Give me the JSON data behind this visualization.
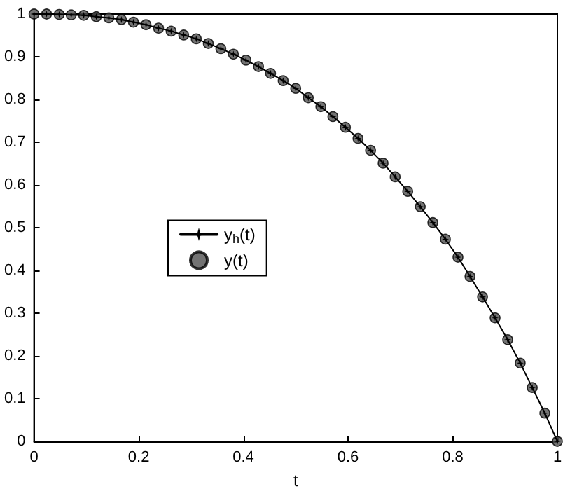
{
  "chart_data": {
    "type": "line",
    "xlabel": "t",
    "x": [
      0,
      0.024,
      0.048,
      0.071,
      0.095,
      0.119,
      0.143,
      0.167,
      0.19,
      0.214,
      0.238,
      0.262,
      0.286,
      0.31,
      0.333,
      0.357,
      0.381,
      0.405,
      0.429,
      0.452,
      0.476,
      0.5,
      0.524,
      0.548,
      0.571,
      0.595,
      0.619,
      0.643,
      0.667,
      0.69,
      0.714,
      0.738,
      0.762,
      0.786,
      0.81,
      0.833,
      0.857,
      0.881,
      0.905,
      0.929,
      0.952,
      0.976,
      1
    ],
    "series": [
      {
        "name": "y$_{h}$(t)",
        "color": "#000000",
        "marker": "star",
        "values": [
          1.0,
          1.0,
          0.999,
          0.998,
          0.997,
          0.994,
          0.991,
          0.987,
          0.981,
          0.975,
          0.967,
          0.96,
          0.951,
          0.942,
          0.931,
          0.919,
          0.906,
          0.892,
          0.877,
          0.861,
          0.844,
          0.826,
          0.804,
          0.783,
          0.76,
          0.735,
          0.709,
          0.681,
          0.651,
          0.619,
          0.585,
          0.549,
          0.512,
          0.473,
          0.431,
          0.386,
          0.338,
          0.289,
          0.238,
          0.183,
          0.126,
          0.066,
          0
        ]
      },
      {
        "name": "y(t)",
        "type": "scatter",
        "color": "#505050",
        "marker": "circle",
        "values": [
          1.0,
          1.0,
          0.999,
          0.998,
          0.997,
          0.994,
          0.991,
          0.987,
          0.981,
          0.975,
          0.967,
          0.96,
          0.951,
          0.942,
          0.931,
          0.919,
          0.906,
          0.892,
          0.877,
          0.861,
          0.844,
          0.826,
          0.804,
          0.783,
          0.76,
          0.735,
          0.709,
          0.681,
          0.651,
          0.619,
          0.585,
          0.549,
          0.512,
          0.473,
          0.431,
          0.386,
          0.338,
          0.289,
          0.238,
          0.183,
          0.126,
          0.066,
          0
        ]
      }
    ],
    "xlim": [
      0,
      1
    ],
    "xticks": [
      0,
      0.2,
      0.4,
      0.6,
      0.8,
      1
    ],
    "ylim": [
      0,
      1
    ],
    "yticks": [
      0,
      0.1,
      0.2,
      0.3,
      0.4,
      0.5,
      0.6,
      0.7,
      0.8,
      0.9,
      1
    ],
    "grid": false,
    "legend": "left"
  }
}
